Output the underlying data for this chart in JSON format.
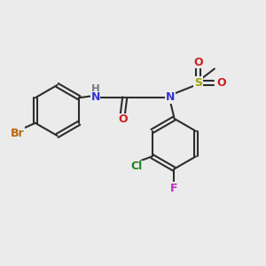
{
  "bg_color": "#ebebeb",
  "bond_color": "#2d2d2d",
  "atom_colors": {
    "Br": "#b86510",
    "N": "#3535cc",
    "H": "#7a7a8a",
    "O": "#cc2020",
    "S": "#a0a000",
    "Cl": "#208020",
    "F": "#bb30bb"
  },
  "lw": 1.5,
  "dbl_off": 0.09,
  "fs": 9.0,
  "ring_r": 0.95
}
